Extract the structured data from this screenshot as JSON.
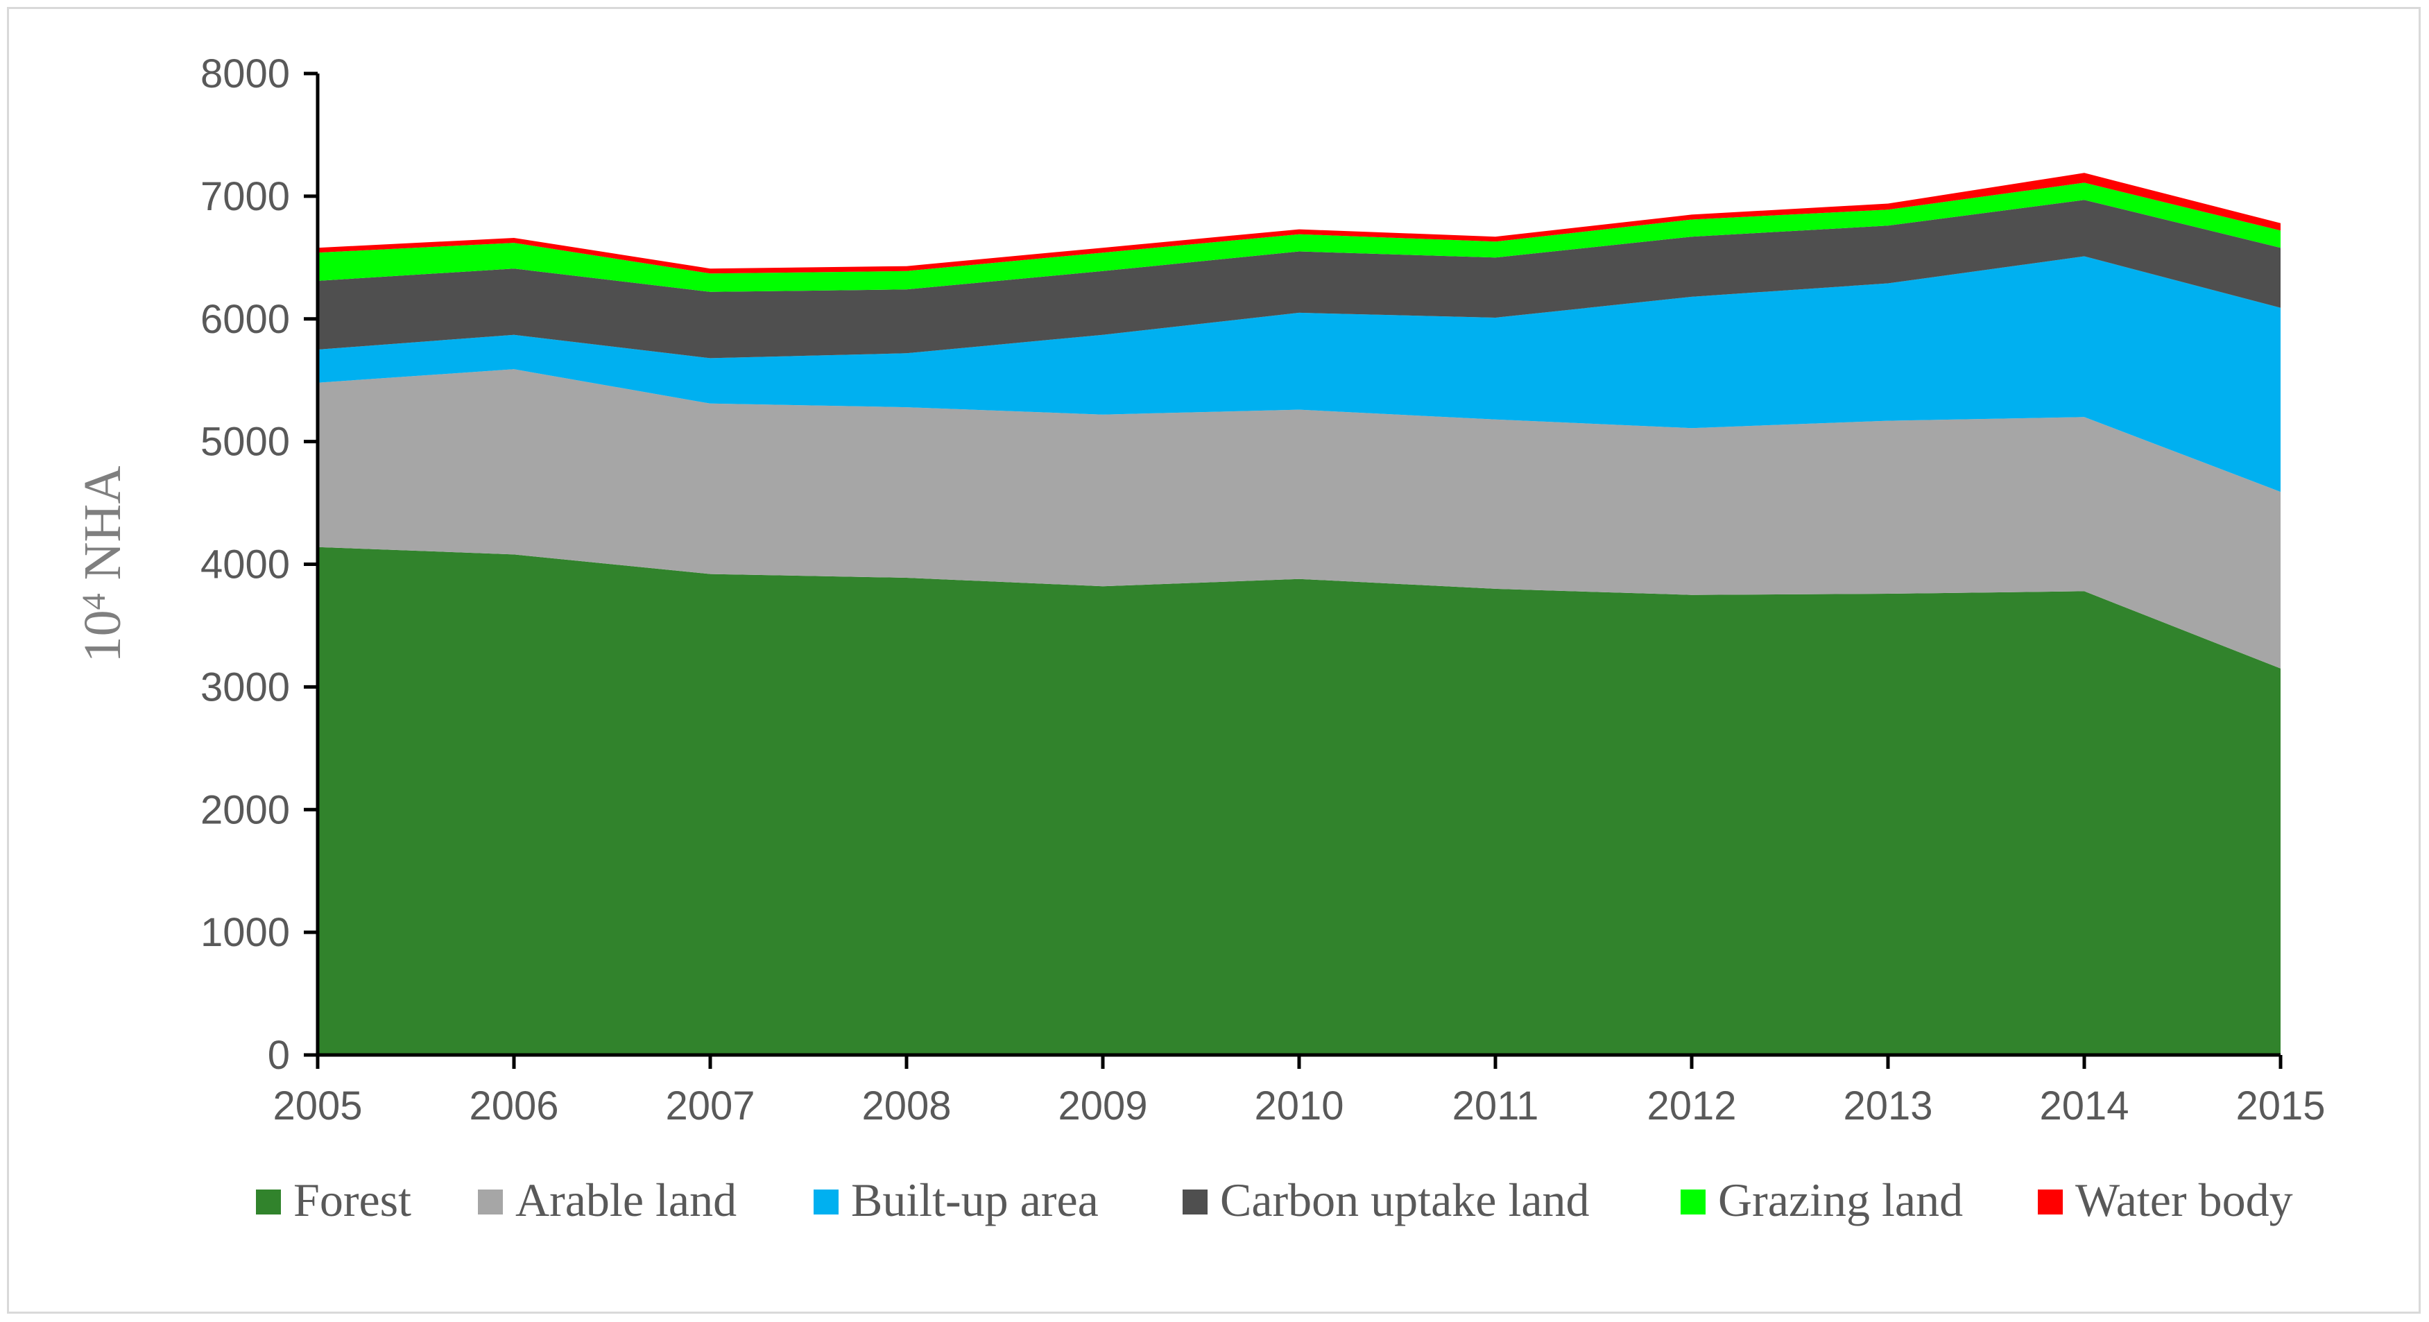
{
  "chart_data": {
    "type": "area",
    "stacked": true,
    "title": "",
    "xlabel": "",
    "ylabel_base": "10",
    "ylabel_exp": "4",
    "ylabel_unit": " NHA",
    "ylim": [
      0,
      8000
    ],
    "yticks": [
      "0",
      "1000",
      "2000",
      "3000",
      "4000",
      "5000",
      "6000",
      "7000",
      "8000"
    ],
    "categories": [
      "2005",
      "2006",
      "2007",
      "2008",
      "2009",
      "2010",
      "2011",
      "2012",
      "2013",
      "2014",
      "2015"
    ],
    "series": [
      {
        "name": "Forest",
        "color": "#31832c",
        "values": [
          4140,
          4080,
          3920,
          3890,
          3820,
          3880,
          3800,
          3750,
          3760,
          3780,
          3150
        ]
      },
      {
        "name": "Arable land",
        "color": "#a6a6a6",
        "values": [
          1340,
          1510,
          1390,
          1390,
          1400,
          1380,
          1380,
          1360,
          1410,
          1420,
          1440
        ]
      },
      {
        "name": "Built-up area",
        "color": "#00b0f0",
        "values": [
          270,
          280,
          370,
          440,
          650,
          790,
          830,
          1070,
          1120,
          1310,
          1500
        ]
      },
      {
        "name": "Carbon uptake land",
        "color": "#4f4f4f",
        "values": [
          560,
          540,
          540,
          520,
          520,
          500,
          490,
          490,
          470,
          460,
          490
        ]
      },
      {
        "name": "Grazing land",
        "color": "#00ff00",
        "values": [
          230,
          210,
          150,
          150,
          150,
          140,
          130,
          140,
          130,
          140,
          140
        ]
      },
      {
        "name": "Water body",
        "color": "#ff0000",
        "values": [
          40,
          40,
          40,
          40,
          40,
          40,
          40,
          40,
          50,
          80,
          60
        ]
      }
    ],
    "legend_position": "bottom",
    "grid": false
  }
}
